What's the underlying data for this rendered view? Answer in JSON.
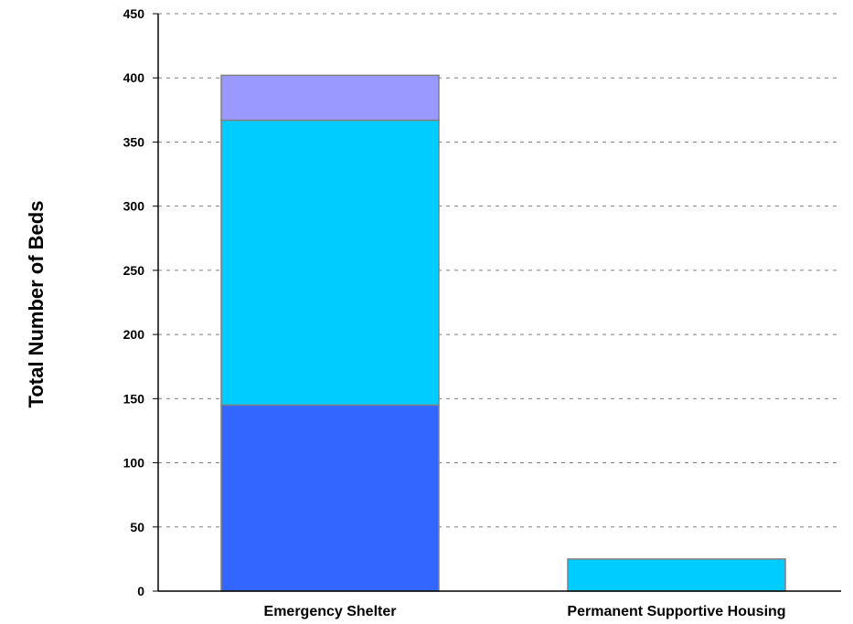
{
  "chart_data": {
    "type": "bar",
    "stacked": true,
    "title": "",
    "xlabel": "",
    "ylabel": "Total Number of Beds",
    "ylim": [
      0,
      450
    ],
    "ytick_step": 50,
    "grid": "horizontal-dashed",
    "categories": [
      "Emergency Shelter",
      "Permanent Supportive Housing"
    ],
    "series": [
      {
        "color": "#3366ff",
        "values": [
          145,
          0
        ]
      },
      {
        "color": "#00ccff",
        "values": [
          222,
          25
        ]
      },
      {
        "color": "#9999ff",
        "values": [
          35,
          0
        ]
      }
    ]
  }
}
